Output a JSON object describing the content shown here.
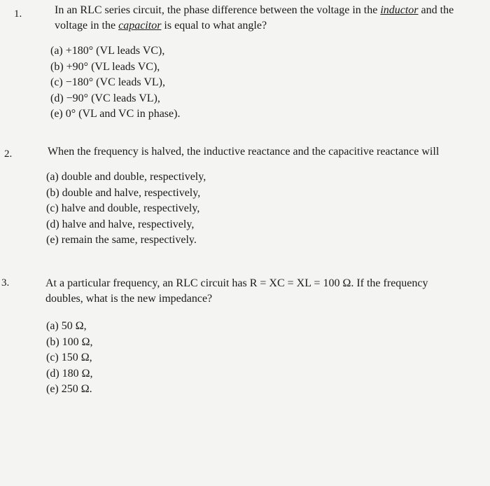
{
  "questions": [
    {
      "number": "1.",
      "text_parts": [
        "In an RLC series circuit, the phase difference between the voltage in the ",
        "inductor",
        " and the voltage in the ",
        "capacitor",
        " is equal to what angle?"
      ],
      "options": [
        "(a) +180° (VL leads VC),",
        "(b) +90° (VL leads VC),",
        "(c) −180° (VC leads VL),",
        "(d) −90° (VC leads VL),",
        "(e) 0° (VL and VC in phase)."
      ]
    },
    {
      "number": "2.",
      "text_parts": [
        "When the frequency is halved, the inductive reactance and the capacitive reactance will"
      ],
      "options": [
        "(a) double and double, respectively,",
        "(b) double and halve, respectively,",
        "(c) halve and double, respectively,",
        "(d) halve and halve, respectively,",
        "(e) remain the same, respectively."
      ]
    },
    {
      "number": "3.",
      "text_parts": [
        "At a particular frequency, an RLC circuit has R = XC = XL = 100 Ω. If the frequency doubles, what is the new impedance?"
      ],
      "options": [
        "(a) 50 Ω,",
        "(b) 100 Ω,",
        "(c) 150 Ω,",
        "(d) 180 Ω,",
        "(e) 250 Ω."
      ]
    }
  ]
}
